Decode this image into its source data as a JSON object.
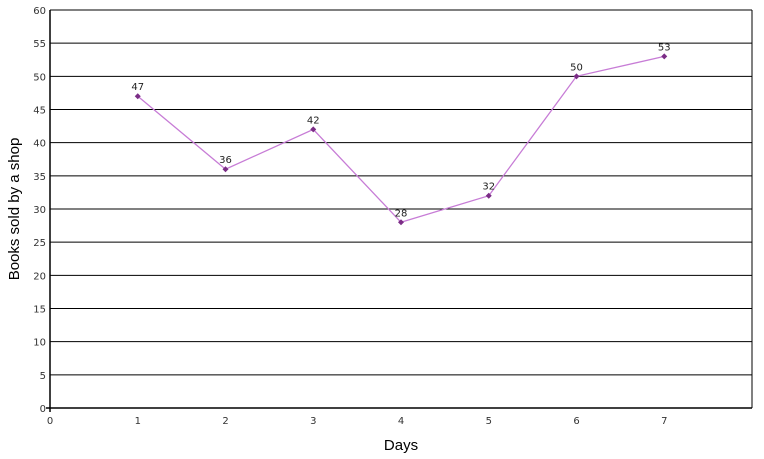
{
  "chart_data": {
    "type": "line",
    "title": "",
    "xlabel": "Days",
    "ylabel": "Books sold by a shop",
    "x": [
      1,
      2,
      3,
      4,
      5,
      6,
      7
    ],
    "series": [
      {
        "values": [
          47,
          36,
          42,
          28,
          32,
          50,
          53
        ]
      }
    ],
    "xlim": [
      0,
      8
    ],
    "ylim": [
      0,
      60
    ],
    "x_ticks": [
      0,
      1,
      2,
      3,
      4,
      5,
      6,
      7
    ],
    "y_ticks": [
      0,
      5,
      10,
      15,
      20,
      25,
      30,
      35,
      40,
      45,
      50,
      55,
      60
    ],
    "grid": "horizontal",
    "legend": "none",
    "data_labels": true,
    "colors": {
      "line": "#c77cd6",
      "marker": "#7b2d86",
      "grid": "#000000"
    }
  }
}
